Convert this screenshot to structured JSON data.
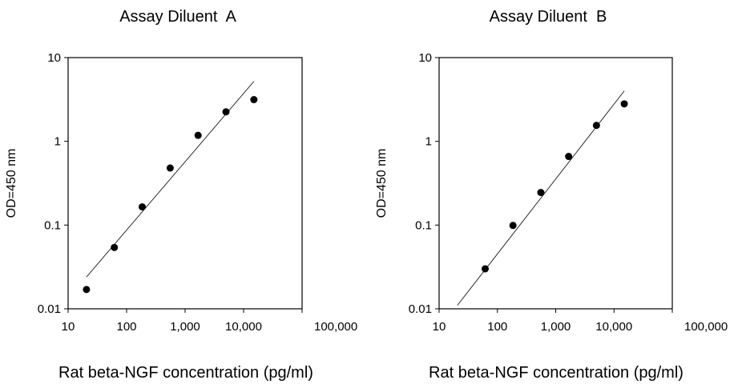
{
  "chart_data": [
    {
      "type": "scatter",
      "title": "Assay Diluent  A",
      "xlabel": "Rat beta-NGF concentration (pg/ml)",
      "ylabel": "OD=450 nm",
      "x_scale": "log",
      "y_scale": "log",
      "xlim": [
        10,
        100000
      ],
      "ylim": [
        0.01,
        10
      ],
      "x_ticks": [
        10,
        100,
        1000,
        10000,
        100000
      ],
      "x_tick_labels": [
        "10",
        "100",
        "1,000",
        "10,000",
        "100,000"
      ],
      "y_ticks": [
        0.01,
        0.1,
        1,
        10
      ],
      "y_tick_labels": [
        "0.01",
        "0.1",
        "1",
        "10"
      ],
      "grid": false,
      "series": [
        {
          "x": [
            20.6,
            61.7,
            185,
            556,
            1667,
            5000,
            15000
          ],
          "y": [
            0.017,
            0.054,
            0.165,
            0.48,
            1.18,
            2.25,
            3.15
          ]
        }
      ],
      "trendline": {
        "x": [
          20.6,
          15000
        ],
        "y": [
          0.024,
          5.2
        ]
      }
    },
    {
      "type": "scatter",
      "title": "Assay Diluent  B",
      "xlabel": "Rat beta-NGF concentration (pg/ml)",
      "ylabel": "OD=450 nm",
      "x_scale": "log",
      "y_scale": "log",
      "xlim": [
        10,
        100000
      ],
      "ylim": [
        0.01,
        10
      ],
      "x_ticks": [
        10,
        100,
        1000,
        10000,
        100000
      ],
      "x_tick_labels": [
        "10",
        "100",
        "1,000",
        "10,000",
        "100,000"
      ],
      "y_ticks": [
        0.01,
        0.1,
        1,
        10
      ],
      "y_tick_labels": [
        "0.01",
        "0.1",
        "1",
        "10"
      ],
      "grid": false,
      "series": [
        {
          "x": [
            61.7,
            185,
            556,
            1667,
            5000,
            15000
          ],
          "y": [
            0.03,
            0.099,
            0.245,
            0.66,
            1.55,
            2.8
          ]
        }
      ],
      "trendline": {
        "x": [
          20.6,
          15000
        ],
        "y": [
          0.011,
          4.0
        ]
      }
    }
  ]
}
